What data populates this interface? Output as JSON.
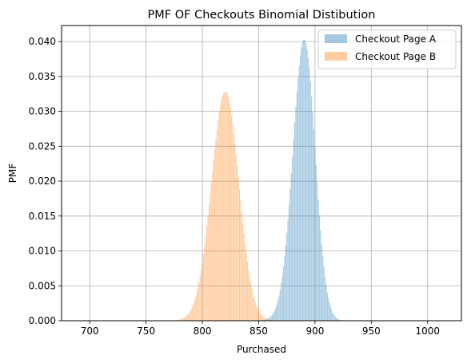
{
  "chart_data": {
    "type": "bar",
    "title": "PMF OF Checkouts Binomial Distibution",
    "xlabel": "Purchased",
    "ylabel": "PMF",
    "xlim": [
      675,
      1030
    ],
    "ylim": [
      0,
      0.0423
    ],
    "xticks": [
      700,
      750,
      800,
      850,
      900,
      950,
      1000
    ],
    "xtick_labels": [
      "700",
      "750",
      "800",
      "850",
      "900",
      "950",
      "1000"
    ],
    "yticks": [
      0.0,
      0.005,
      0.01,
      0.015,
      0.02,
      0.025,
      0.03,
      0.035,
      0.04
    ],
    "ytick_labels": [
      "0.000",
      "0.005",
      "0.010",
      "0.015",
      "0.020",
      "0.025",
      "0.030",
      "0.035",
      "0.040"
    ],
    "grid": true,
    "legend_position": "top-right",
    "x_range": [
      675,
      1020
    ],
    "series": [
      {
        "name": "Checkout Page A",
        "color": "#1f77b4",
        "opacity": 0.4,
        "distribution": "binomial",
        "n": 1000,
        "p": 0.89
      },
      {
        "name": "Checkout Page B",
        "color": "#ff7f0e",
        "opacity": 0.4,
        "distribution": "binomial",
        "n": 1000,
        "p": 0.82
      }
    ]
  }
}
